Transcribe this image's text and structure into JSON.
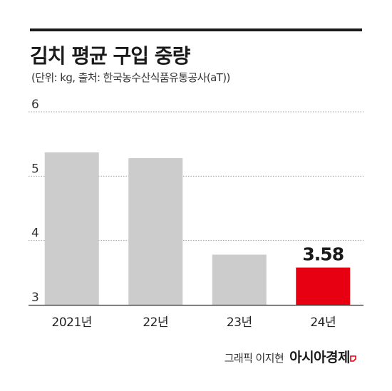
{
  "title": "김치 평균 구입 중량",
  "subtitle": "(단위: kg, 출처: 한국농수산식품유통공사(aT))",
  "credit": {
    "graphic": "그래픽 이지현",
    "brand": "아시아경제",
    "brand_color": "#e60012"
  },
  "chart_data": {
    "type": "bar",
    "title": "김치 평균 구입 중량",
    "subtitle": "(단위: kg, 출처: 한국농수산식품유통공사(aT))",
    "categories": [
      "2021년",
      "22년",
      "23년",
      "24년"
    ],
    "values": [
      5.37,
      5.28,
      3.78,
      3.58
    ],
    "data_labels": [
      "",
      "",
      "",
      "3.58"
    ],
    "ylim": [
      3,
      6
    ],
    "yticks": [
      3,
      4,
      5,
      6
    ],
    "grid": true,
    "bar_color": "#cccccc",
    "highlight_color": "#e60012",
    "highlight_index": 3
  }
}
